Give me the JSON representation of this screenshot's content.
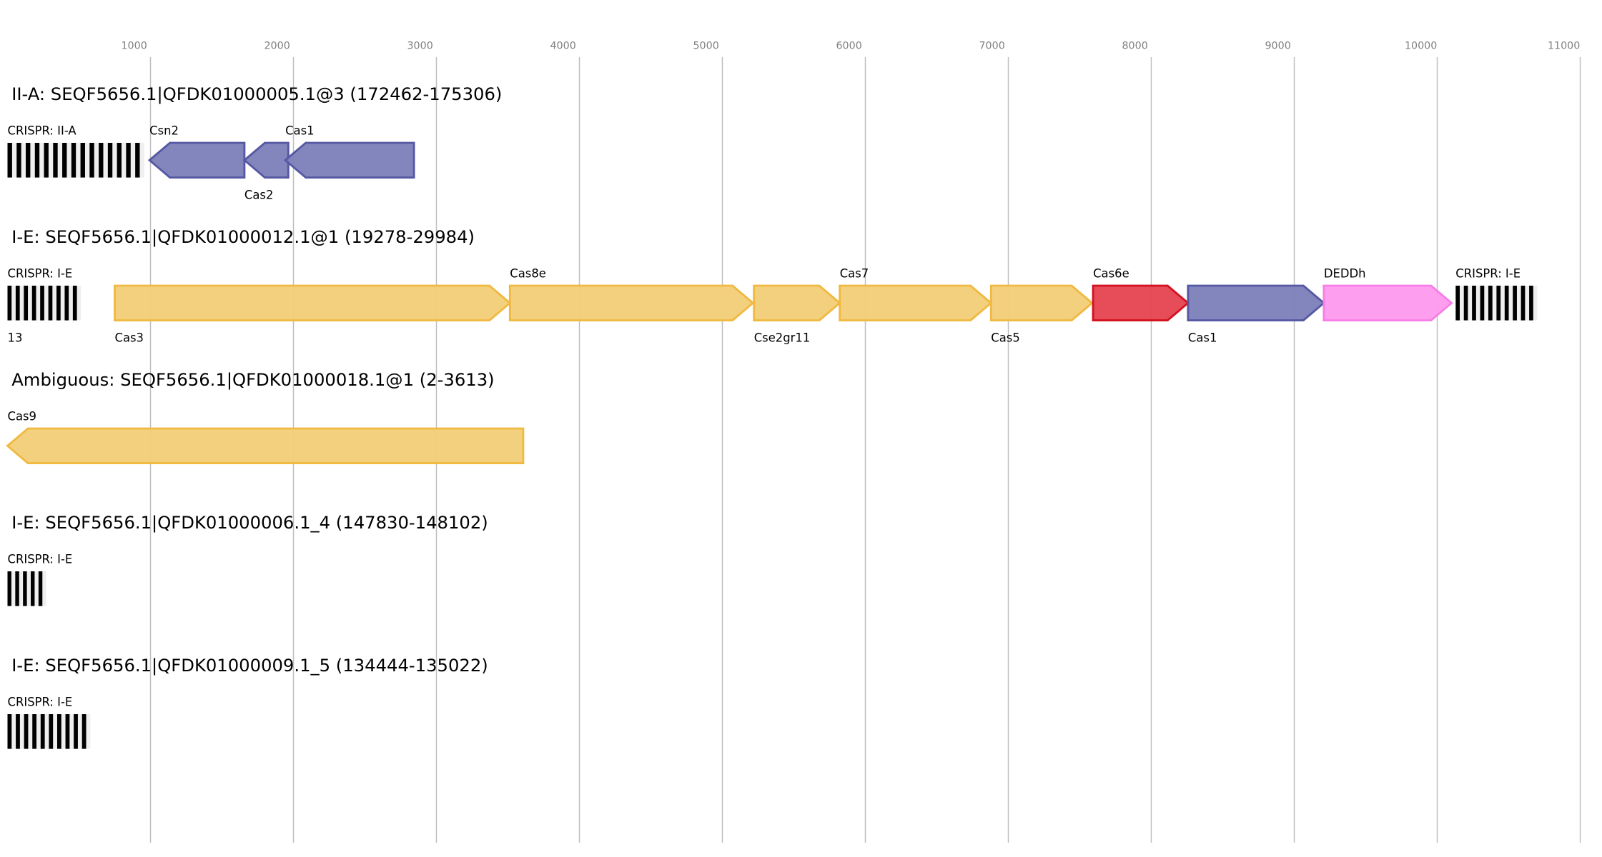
{
  "axis": {
    "ticks": [
      1000,
      2000,
      3000,
      4000,
      5000,
      6000,
      7000,
      8000,
      9000,
      10000,
      11000
    ]
  },
  "colors": {
    "blue": {
      "fill": "#7b7fb8",
      "stroke": "#5558a2"
    },
    "yellow": {
      "fill": "#f2cd76",
      "stroke": "#f0b941"
    },
    "red": {
      "fill": "#e5434f",
      "stroke": "#d4111f"
    },
    "pink": {
      "fill": "#fe99ee",
      "stroke": "#f77ee6"
    },
    "crispr_bar": "#000000",
    "crispr_bg": "#efefef"
  },
  "loci": [
    {
      "title": "II-A: SEQF5656.1|QFDK01000005.1@3 (172462-175306)",
      "features": [
        {
          "type": "crispr",
          "label": "CRISPR: II-A",
          "start": 0,
          "end": 957,
          "repeats": 15,
          "label_pos": "above"
        },
        {
          "type": "gene",
          "label": "Csn2",
          "start": 993,
          "end": 1657,
          "strand": "-",
          "color": "blue",
          "label_pos": "above"
        },
        {
          "type": "gene",
          "label": "Cas2",
          "start": 1657,
          "end": 1964,
          "strand": "-",
          "color": "blue",
          "label_pos": "below"
        },
        {
          "type": "gene",
          "label": "Cas1",
          "start": 1943,
          "end": 2843,
          "strand": "-",
          "color": "blue",
          "label_pos": "above"
        }
      ]
    },
    {
      "title": "I-E: SEQF5656.1|QFDK01000012.1@1 (19278-29984)",
      "extra_label": "13",
      "features": [
        {
          "type": "crispr",
          "label": "CRISPR: I-E",
          "start": 0,
          "end": 514,
          "repeats": 9,
          "label_pos": "above"
        },
        {
          "type": "gene",
          "label": "Cas3",
          "start": 750,
          "end": 3514,
          "strand": "+",
          "color": "yellow",
          "label_pos": "below"
        },
        {
          "type": "gene",
          "label": "Cas8e",
          "start": 3514,
          "end": 5214,
          "strand": "+",
          "color": "yellow",
          "label_pos": "above"
        },
        {
          "type": "gene",
          "label": "Cse2gr11",
          "start": 5221,
          "end": 5821,
          "strand": "+",
          "color": "yellow",
          "label_pos": "below"
        },
        {
          "type": "gene",
          "label": "Cas7",
          "start": 5821,
          "end": 6879,
          "strand": "+",
          "color": "yellow",
          "label_pos": "above"
        },
        {
          "type": "gene",
          "label": "Cas5",
          "start": 6879,
          "end": 7586,
          "strand": "+",
          "color": "yellow",
          "label_pos": "below"
        },
        {
          "type": "gene",
          "label": "Cas6e",
          "start": 7593,
          "end": 8257,
          "strand": "+",
          "color": "red",
          "label_pos": "above"
        },
        {
          "type": "gene",
          "label": "Cas1",
          "start": 8257,
          "end": 9207,
          "strand": "+",
          "color": "blue",
          "label_pos": "below"
        },
        {
          "type": "gene",
          "label": "DEDDh",
          "start": 9207,
          "end": 10100,
          "strand": "+",
          "color": "pink",
          "label_pos": "above"
        },
        {
          "type": "crispr",
          "label": "CRISPR: I-E",
          "start": 10129,
          "end": 10700,
          "repeats": 10,
          "label_pos": "above"
        }
      ]
    },
    {
      "title": "Ambiguous: SEQF5656.1|QFDK01000018.1@1 (2-3613)",
      "features": [
        {
          "type": "gene",
          "label": "Cas9",
          "start": 0,
          "end": 3607,
          "strand": "-",
          "color": "yellow",
          "label_pos": "above"
        }
      ]
    },
    {
      "title": "I-E: SEQF5656.1|QFDK01000006.1_4 (147830-148102)",
      "features": [
        {
          "type": "crispr",
          "label": "CRISPR: I-E",
          "start": 0,
          "end": 271,
          "repeats": 5,
          "label_pos": "above"
        }
      ]
    },
    {
      "title": "I-E: SEQF5656.1|QFDK01000009.1_5 (134444-135022)",
      "features": [
        {
          "type": "crispr",
          "label": "CRISPR: I-E",
          "start": 0,
          "end": 579,
          "repeats": 10,
          "label_pos": "above"
        }
      ]
    }
  ]
}
